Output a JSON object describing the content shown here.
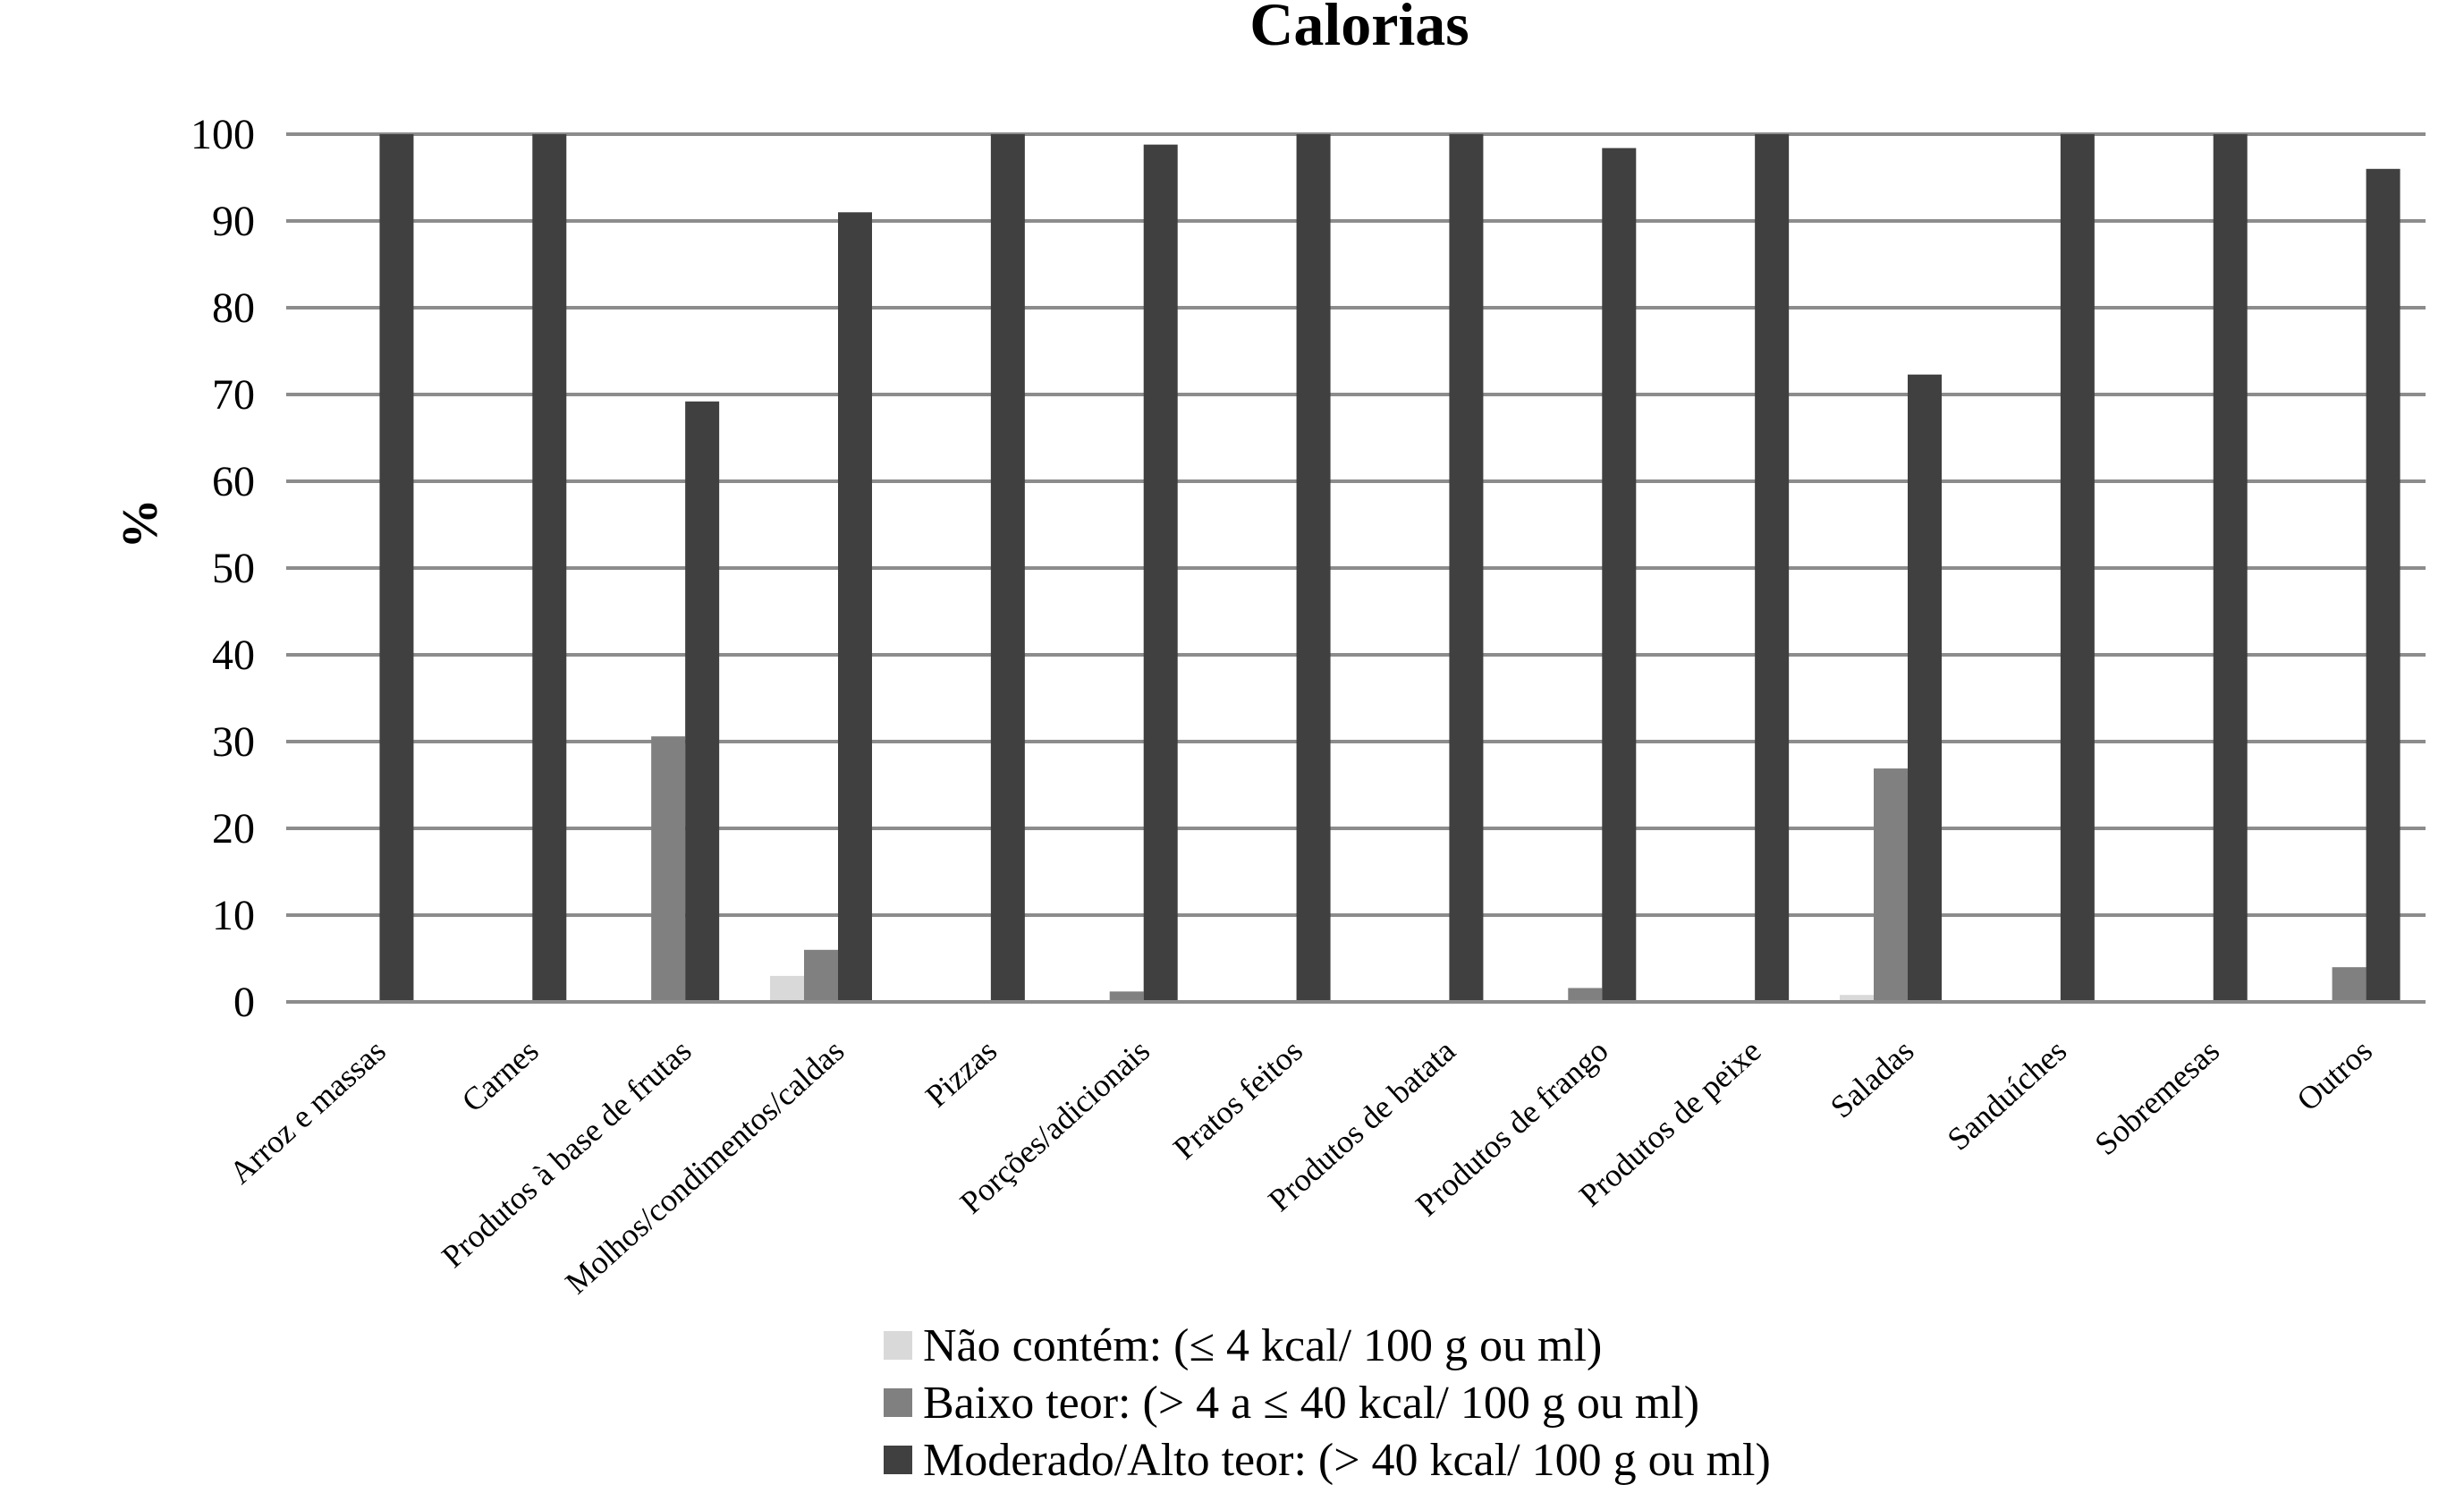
{
  "chart_data": {
    "type": "bar",
    "title": "Calorias",
    "xlabel": "",
    "ylabel": "%",
    "ylim": [
      0,
      100
    ],
    "yticks": [
      0,
      10,
      20,
      30,
      40,
      50,
      60,
      70,
      80,
      90,
      100
    ],
    "grid": true,
    "legend_position": "bottom-center",
    "categories": [
      "Arroz e massas",
      "Carnes",
      "Produtos à base de frutas",
      "Molhos/condimentos/caldas",
      "Pizzas",
      "Porções/adicionais",
      "Pratos feitos",
      "Produtos de batata",
      "Produtos de frango",
      "Produtos de peixe",
      "Saladas",
      "Sanduíches",
      "Sobremesas",
      "Outros"
    ],
    "series": [
      {
        "name": "Não contém: (≤ 4 kcal/ 100 g ou ml)",
        "color": "#d9d9d9",
        "values": [
          0,
          0,
          0,
          3,
          0,
          0,
          0,
          0,
          0,
          0,
          0.8,
          0,
          0,
          0
        ]
      },
      {
        "name": "Baixo teor:  (> 4  a ≤ 40 kcal/ 100 g ou ml)",
        "color": "#808080",
        "values": [
          0,
          0,
          30.6,
          6,
          0,
          1.2,
          0,
          0,
          1.6,
          0,
          26.9,
          0,
          0,
          4
        ]
      },
      {
        "name": "Moderado/Alto teor: (> 40 kcal/ 100 g ou ml)",
        "color": "#404040",
        "values": [
          100,
          100,
          69.2,
          91,
          100,
          98.8,
          100,
          100,
          98.4,
          100,
          72.3,
          100,
          100,
          96
        ]
      }
    ]
  }
}
